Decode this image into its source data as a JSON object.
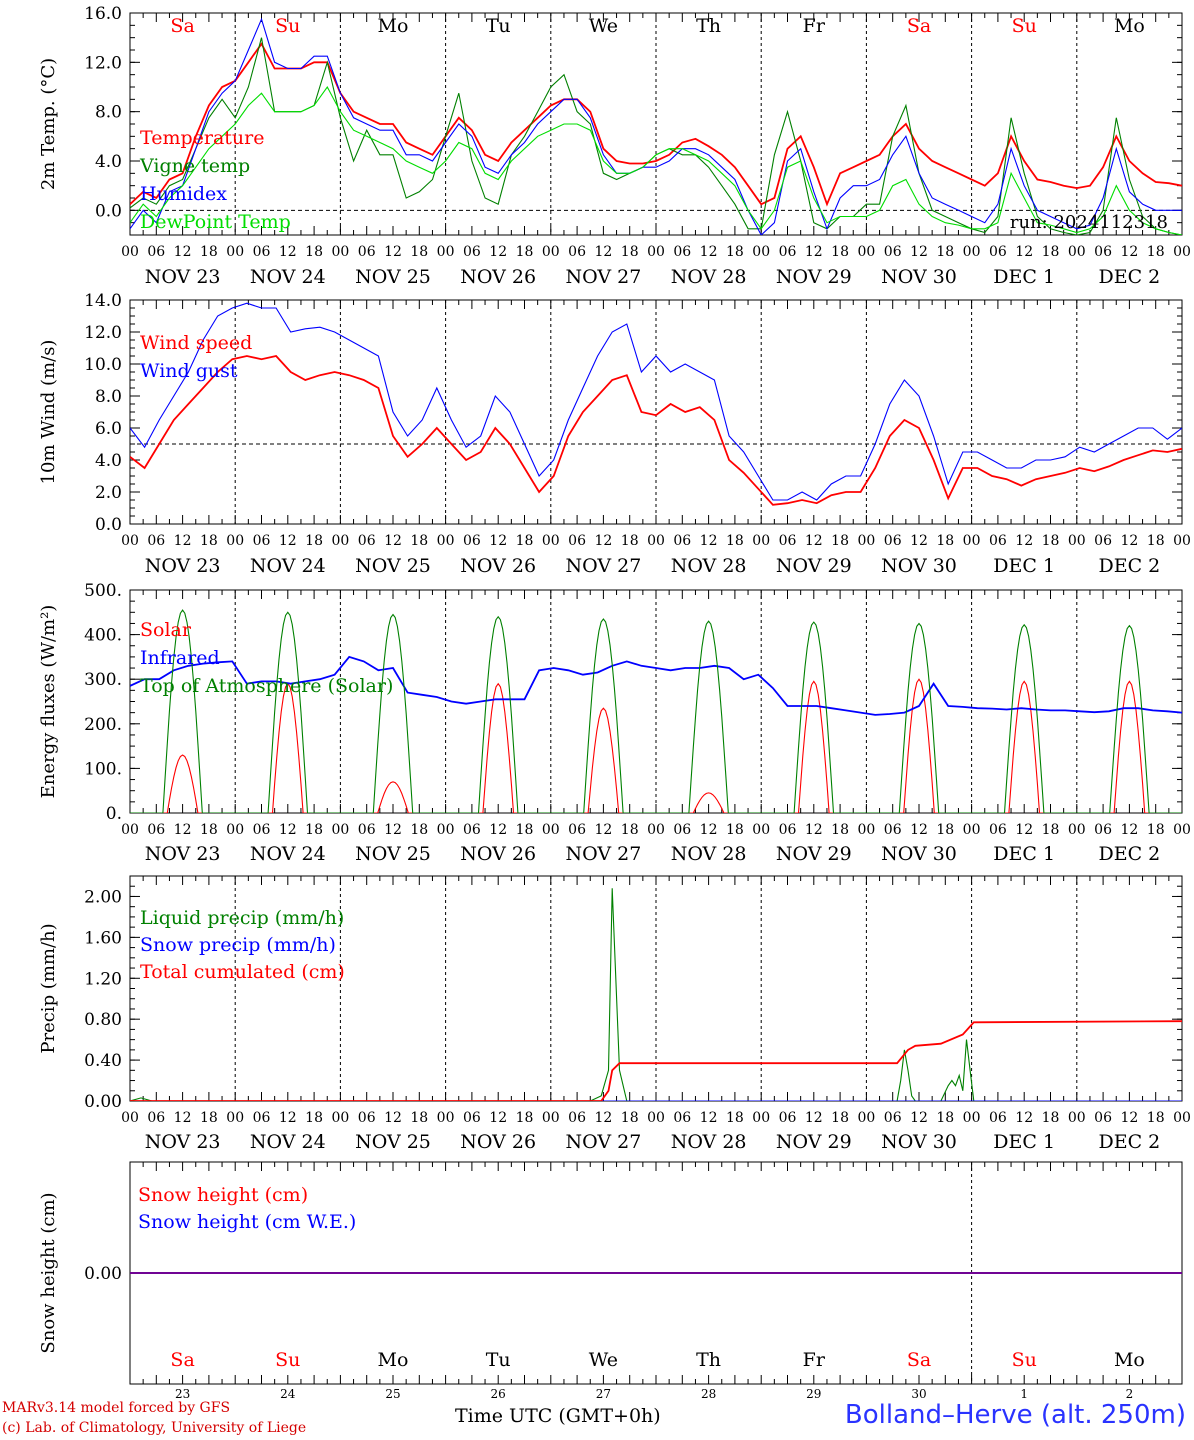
{
  "footer": {
    "credit_line1": "MARv3.14 model forced by GFS",
    "credit_line2": "(c) Lab. of Climatology, University of Liege",
    "time_axis_label": "Time UTC (GMT+0h)",
    "station": "Bolland–Herve (alt. 250m)"
  },
  "colors": {
    "red": "#ff0000",
    "blue": "#0000ff",
    "dark_green": "#008000",
    "light_green": "#00dd00",
    "weekend": "#ff0000",
    "weekday": "#000000"
  },
  "chart_data": [
    {
      "type": "line",
      "ylabel": "2m Temp. (°C)",
      "ylim": [
        -2,
        16
      ],
      "yticks": [
        "0.0",
        "4.0",
        "8.0",
        "12.0",
        "16.0"
      ],
      "ytick_values": [
        0,
        4,
        8,
        12,
        16
      ],
      "reference_line": 0,
      "weekday_labels": [
        "Sa",
        "Su",
        "Mo",
        "Tu",
        "We",
        "Th",
        "Fr",
        "Sa",
        "Su",
        "Mo"
      ],
      "weekend_flags": [
        true,
        true,
        false,
        false,
        false,
        false,
        false,
        true,
        true,
        false
      ],
      "x_hour_ticks": [
        "00",
        "06",
        "12",
        "18"
      ],
      "date_labels": [
        "NOV 23",
        "NOV 24",
        "NOV 25",
        "NOV 26",
        "NOV 27",
        "NOV 28",
        "NOV 29",
        "NOV 30",
        "DEC  1",
        "DEC  2"
      ],
      "annotation": "run: 2024112318",
      "x_hours_step": 6,
      "series": [
        {
          "name": "Temperature",
          "color": "#ff0000",
          "values": [
            0.5,
            1.5,
            1.0,
            2.5,
            3.0,
            6.0,
            8.5,
            10.0,
            10.5,
            12.0,
            13.5,
            11.5,
            11.5,
            11.5,
            12.0,
            12.0,
            9.5,
            8.0,
            7.5,
            7.0,
            7.0,
            5.5,
            5.0,
            4.5,
            6.0,
            7.5,
            6.5,
            4.5,
            4.0,
            5.5,
            6.5,
            7.5,
            8.5,
            9.0,
            9.0,
            8.0,
            5.0,
            4.0,
            3.8,
            3.8,
            4.0,
            4.5,
            5.5,
            5.8,
            5.2,
            4.5,
            3.5,
            2.0,
            0.5,
            1.0,
            5.0,
            6.0,
            3.5,
            0.5,
            3.0,
            3.5,
            4.0,
            4.5,
            6.0,
            7.0,
            5.0,
            4.0,
            3.5,
            3.0,
            2.5,
            2.0,
            3.0,
            6.0,
            4.0,
            2.5,
            2.3,
            2.0,
            1.8,
            2.0,
            3.5,
            6.0,
            4.0,
            3.0,
            2.3,
            2.2,
            2.0
          ]
        },
        {
          "name": "Vigne temp",
          "color": "#008000",
          "values": [
            0.2,
            1.0,
            0.5,
            2.0,
            2.5,
            5.0,
            7.5,
            9.0,
            7.5,
            10.0,
            14.0,
            8.0,
            8.0,
            8.0,
            8.5,
            12.0,
            7.5,
            4.0,
            6.5,
            4.5,
            4.5,
            1.0,
            1.5,
            2.5,
            6.0,
            9.5,
            4.0,
            1.0,
            0.5,
            4.5,
            6.0,
            8.0,
            10.0,
            11.0,
            8.0,
            7.0,
            3.0,
            2.5,
            3.0,
            3.5,
            4.5,
            5.0,
            4.5,
            4.5,
            3.5,
            2.0,
            0.5,
            -1.5,
            -1.5,
            4.5,
            8.0,
            4.0,
            -1.0,
            -1.5,
            -0.5,
            -0.5,
            0.5,
            0.5,
            6.0,
            8.5,
            3.0,
            0.0,
            -0.5,
            -1.0,
            -1.5,
            -1.8,
            -0.5,
            7.5,
            3.0,
            -0.5,
            -1.5,
            -1.8,
            -2.0,
            -1.8,
            0.0,
            7.5,
            2.5,
            -0.5,
            -1.5,
            -1.8,
            -2.0
          ]
        },
        {
          "name": "Humidex",
          "color": "#0000ff",
          "values": [
            -1.5,
            0.0,
            -1.0,
            1.5,
            2.0,
            5.0,
            8.0,
            9.5,
            10.5,
            13.0,
            15.5,
            12.0,
            11.5,
            11.5,
            12.5,
            12.5,
            9.5,
            7.5,
            7.0,
            6.5,
            6.5,
            4.5,
            4.5,
            4.0,
            5.5,
            7.0,
            6.0,
            3.5,
            3.0,
            4.5,
            5.5,
            7.0,
            8.0,
            9.0,
            9.0,
            7.5,
            4.5,
            3.0,
            3.0,
            3.5,
            3.5,
            4.0,
            5.0,
            5.0,
            4.5,
            3.5,
            2.5,
            0.0,
            -2.0,
            -1.0,
            4.0,
            5.0,
            1.5,
            -1.5,
            1.0,
            2.0,
            2.0,
            2.5,
            4.5,
            6.0,
            3.0,
            1.0,
            0.5,
            0.0,
            -0.5,
            -1.0,
            0.5,
            5.0,
            2.0,
            0.0,
            -0.5,
            -1.0,
            -1.5,
            -1.2,
            1.0,
            5.0,
            1.5,
            0.5,
            0.0,
            0.0,
            0.0
          ]
        },
        {
          "name": "DewPoint Temp",
          "color": "#00dd00",
          "values": [
            -1.0,
            0.5,
            -0.5,
            1.0,
            2.0,
            3.5,
            5.0,
            6.0,
            7.0,
            8.5,
            9.5,
            8.0,
            8.0,
            8.0,
            8.5,
            10.0,
            8.0,
            6.5,
            6.0,
            5.5,
            5.0,
            4.0,
            3.5,
            3.0,
            4.0,
            5.5,
            5.0,
            3.0,
            2.5,
            4.0,
            5.0,
            6.0,
            6.5,
            7.0,
            7.0,
            6.5,
            4.0,
            3.0,
            3.0,
            3.5,
            4.5,
            5.0,
            5.0,
            4.5,
            4.0,
            3.0,
            2.0,
            0.0,
            -1.5,
            0.0,
            3.5,
            4.0,
            1.0,
            -1.0,
            -0.5,
            -0.5,
            -0.5,
            0.0,
            2.0,
            2.5,
            0.5,
            -0.5,
            -1.0,
            -1.2,
            -1.5,
            -1.5,
            -1.0,
            3.0,
            1.0,
            -1.0,
            -1.2,
            -1.5,
            -1.8,
            -1.5,
            -0.5,
            2.0,
            0.0,
            -1.0,
            -1.5,
            -1.8,
            -2.0
          ]
        }
      ]
    },
    {
      "type": "line",
      "ylabel": "10m Wind (m/s)",
      "ylim": [
        0,
        14
      ],
      "yticks": [
        "0.0",
        "2.0",
        "4.0",
        "6.0",
        "8.0",
        "10.0",
        "12.0",
        "14.0"
      ],
      "ytick_values": [
        0,
        2,
        4,
        6,
        8,
        10,
        12,
        14
      ],
      "reference_line": 5,
      "x_hour_ticks": [
        "00",
        "06",
        "12",
        "18"
      ],
      "date_labels": [
        "NOV 23",
        "NOV 24",
        "NOV 25",
        "NOV 26",
        "NOV 27",
        "NOV 28",
        "NOV 29",
        "NOV 30",
        "DEC  1",
        "DEC  2"
      ],
      "x_hours_step": 6,
      "series": [
        {
          "name": "Wind speed",
          "color": "#ff0000",
          "values": [
            4.2,
            3.5,
            5.0,
            6.5,
            7.5,
            8.5,
            9.5,
            10.3,
            10.5,
            10.3,
            10.5,
            9.5,
            9.0,
            9.3,
            9.5,
            9.3,
            9.0,
            8.5,
            5.5,
            4.2,
            5.0,
            6.0,
            5.0,
            4.0,
            4.5,
            6.0,
            5.0,
            3.5,
            2.0,
            3.0,
            5.5,
            7.0,
            8.0,
            9.0,
            9.3,
            7.0,
            6.8,
            7.5,
            7.0,
            7.3,
            6.5,
            4.0,
            3.2,
            2.2,
            1.2,
            1.3,
            1.5,
            1.3,
            1.8,
            2.0,
            2.0,
            3.5,
            5.5,
            6.5,
            6.0,
            4.0,
            1.6,
            3.5,
            3.5,
            3.0,
            2.8,
            2.4,
            2.8,
            3.0,
            3.2,
            3.5,
            3.3,
            3.6,
            4.0,
            4.3,
            4.6,
            4.5,
            4.7
          ]
        },
        {
          "name": "Wind gust",
          "color": "#0000ff",
          "values": [
            6.0,
            4.8,
            6.5,
            8.0,
            9.5,
            11.5,
            13.0,
            13.5,
            13.8,
            13.5,
            13.5,
            12.0,
            12.2,
            12.3,
            12.0,
            11.5,
            11.0,
            10.5,
            7.0,
            5.5,
            6.5,
            8.5,
            6.5,
            4.8,
            5.5,
            8.0,
            7.0,
            5.0,
            3.0,
            4.0,
            6.5,
            8.5,
            10.5,
            12.0,
            12.5,
            9.5,
            10.5,
            9.5,
            10.0,
            9.5,
            9.0,
            5.5,
            4.5,
            3.0,
            1.5,
            1.5,
            2.0,
            1.5,
            2.5,
            3.0,
            3.0,
            5.0,
            7.5,
            9.0,
            8.0,
            5.5,
            2.5,
            4.5,
            4.5,
            4.0,
            3.5,
            3.5,
            4.0,
            4.0,
            4.2,
            4.8,
            4.5,
            5.0,
            5.5,
            6.0,
            6.0,
            5.3,
            6.0
          ]
        }
      ]
    },
    {
      "type": "line",
      "ylabel": "Energy fluxes (W/m²)",
      "ylim": [
        0,
        500
      ],
      "yticks": [
        "0.",
        "100.",
        "200.",
        "300.",
        "400.",
        "500."
      ],
      "ytick_values": [
        0,
        100,
        200,
        300,
        400,
        500
      ],
      "x_hour_ticks": [
        "00",
        "06",
        "12",
        "18"
      ],
      "date_labels": [
        "NOV 23",
        "NOV 24",
        "NOV 25",
        "NOV 26",
        "NOV 27",
        "NOV 28",
        "NOV 29",
        "NOV 30",
        "DEC  1",
        "DEC  2"
      ],
      "x_hours_step": 6,
      "series": [
        {
          "name": "Solar",
          "color": "#ff0000",
          "daily_peaks": [
            130,
            290,
            70,
            290,
            235,
            45,
            295,
            300,
            295,
            295
          ]
        },
        {
          "name": "Infrared",
          "color": "#0000ff",
          "values": [
            285,
            300,
            300,
            320,
            330,
            335,
            338,
            340,
            290,
            295,
            295,
            290,
            295,
            300,
            310,
            350,
            340,
            320,
            325,
            270,
            265,
            260,
            250,
            245,
            250,
            255,
            255,
            255,
            320,
            325,
            320,
            310,
            315,
            330,
            340,
            330,
            325,
            320,
            325,
            325,
            330,
            325,
            300,
            310,
            280,
            240,
            240,
            240,
            235,
            230,
            225,
            220,
            222,
            225,
            240,
            290,
            240,
            238,
            235,
            234,
            232,
            235,
            232,
            230,
            230,
            228,
            226,
            228,
            235,
            235,
            230,
            228,
            225
          ]
        },
        {
          "name": "Top of Atmosphere (Solar)",
          "color": "#008000",
          "daily_peaks": [
            455,
            450,
            445,
            440,
            435,
            430,
            428,
            425,
            422,
            420
          ]
        }
      ]
    },
    {
      "type": "line",
      "ylabel": "Precip (mm/h)",
      "ylim": [
        0,
        2.2
      ],
      "yticks": [
        "0.00",
        "0.40",
        "0.80",
        "1.20",
        "1.60",
        "2.00"
      ],
      "ytick_values": [
        0,
        0.4,
        0.8,
        1.2,
        1.6,
        2.0
      ],
      "x_hour_ticks": [
        "00",
        "06",
        "12",
        "18"
      ],
      "date_labels": [
        "NOV 23",
        "NOV 24",
        "NOV 25",
        "NOV 26",
        "NOV 27",
        "NOV 28",
        "NOV 29",
        "NOV 30",
        "DEC  1",
        "DEC  2"
      ],
      "x_hours_step": 6,
      "series": [
        {
          "name": "Liquid precip (mm/h)",
          "color": "#008000",
          "points": [
            [
              0,
              0
            ],
            [
              6,
              0.03
            ],
            [
              12,
              0
            ],
            [
              252,
              0
            ],
            [
              258,
              0.05
            ],
            [
              262,
              0.3
            ],
            [
              264,
              2.08
            ],
            [
              266,
              1.2
            ],
            [
              268,
              0.3
            ],
            [
              272,
              0
            ],
            [
              420,
              0
            ],
            [
              422,
              0.2
            ],
            [
              424,
              0.5
            ],
            [
              426,
              0.3
            ],
            [
              428,
              0.05
            ],
            [
              430,
              0
            ],
            [
              444,
              0
            ],
            [
              448,
              0.15
            ],
            [
              450,
              0.2
            ],
            [
              452,
              0.15
            ],
            [
              454,
              0.25
            ],
            [
              456,
              0.1
            ],
            [
              458,
              0.6
            ],
            [
              460,
              0.3
            ],
            [
              462,
              0
            ],
            [
              576,
              0
            ]
          ]
        },
        {
          "name": "Snow precip (mm/h)",
          "color": "#0000ff",
          "points": [
            [
              0,
              0
            ],
            [
              576,
              0
            ]
          ]
        },
        {
          "name": "Total cumulated (cm)",
          "color": "#ff0000",
          "points": [
            [
              0,
              0
            ],
            [
              258,
              0
            ],
            [
              262,
              0.1
            ],
            [
              264,
              0.3
            ],
            [
              268,
              0.37
            ],
            [
              420,
              0.37
            ],
            [
              426,
              0.5
            ],
            [
              430,
              0.54
            ],
            [
              444,
              0.56
            ],
            [
              456,
              0.65
            ],
            [
              462,
              0.77
            ],
            [
              576,
              0.78
            ]
          ]
        }
      ]
    },
    {
      "type": "line",
      "ylabel": "Snow height (cm)",
      "ylim": [
        -1,
        1
      ],
      "yticks": [
        "0.00"
      ],
      "ytick_values": [
        0
      ],
      "weekday_labels": [
        "Sa",
        "Su",
        "Mo",
        "Tu",
        "We",
        "Th",
        "Fr",
        "Sa",
        "Su",
        "Mo"
      ],
      "weekend_flags": [
        true,
        true,
        false,
        false,
        false,
        false,
        false,
        true,
        true,
        false
      ],
      "day_numbers": [
        "23",
        "24",
        "25",
        "26",
        "27",
        "28",
        "29",
        "30",
        "1",
        "2"
      ],
      "series": [
        {
          "name": "Snow height (cm)",
          "color": "#ff0000",
          "values": [
            0,
            0
          ]
        },
        {
          "name": "Snow height (cm W.E.)",
          "color": "#0000ff",
          "values": [
            0,
            0
          ]
        }
      ]
    }
  ]
}
